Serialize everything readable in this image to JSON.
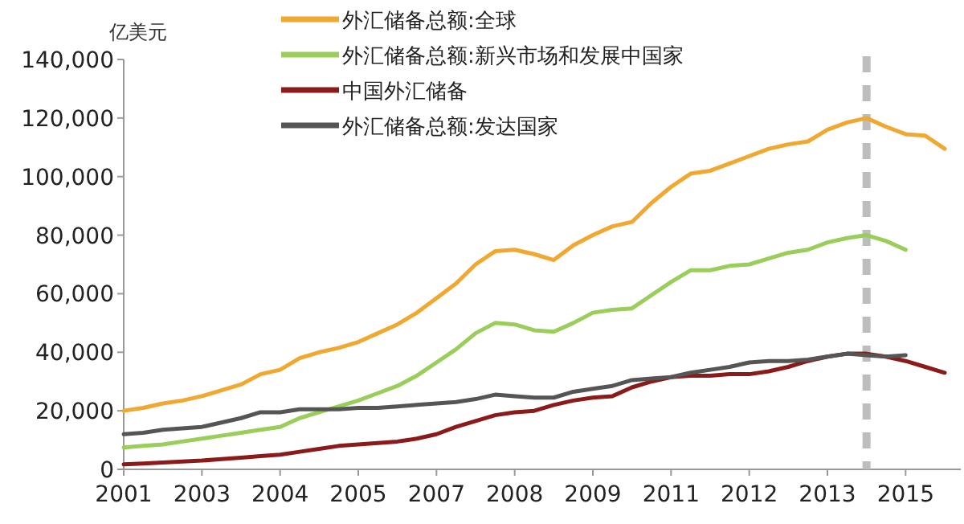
{
  "chart_data": {
    "type": "line",
    "ylabel": "亿美元",
    "legend": "top",
    "marker": "none",
    "line_style": "solid",
    "categories": [
      "2001",
      null,
      null,
      null,
      "2003",
      null,
      null,
      null,
      "2004",
      null,
      null,
      null,
      "2005",
      null,
      null,
      null,
      "2007",
      null,
      null,
      null,
      "2008",
      null,
      null,
      null,
      "2009",
      null,
      null,
      null,
      "2011",
      null,
      null,
      null,
      "2012",
      null,
      null,
      null,
      "2013",
      null,
      null,
      null,
      "2015",
      null,
      null
    ],
    "ylim": [
      0,
      140000
    ],
    "yticks": [
      {
        "value": 0,
        "label": "0"
      },
      {
        "value": 20000,
        "label": "20,000"
      },
      {
        "value": 40000,
        "label": "40,000"
      },
      {
        "value": 60000,
        "label": "60,000"
      },
      {
        "value": 80000,
        "label": "80,000"
      },
      {
        "value": 100000,
        "label": "100,000"
      },
      {
        "value": 120000,
        "label": "120,000"
      },
      {
        "value": 140000,
        "label": "140,000"
      }
    ],
    "series": [
      {
        "name": "外汇储备总额:全球",
        "color": "#f0a830",
        "values": [
          20000,
          21000,
          22500,
          23500,
          25000,
          27000,
          29000,
          32500,
          34000,
          38000,
          40000,
          41500,
          43500,
          46500,
          49500,
          53500,
          58500,
          63500,
          70000,
          74500,
          75000,
          73500,
          71500,
          76500,
          80000,
          83000,
          84500,
          91000,
          96500,
          101000,
          102000,
          104500,
          107000,
          109500,
          111000,
          112000,
          116000,
          118500,
          120000,
          117000,
          114500,
          114000,
          109500
        ]
      },
      {
        "name": "外汇储备总额:新兴市场和发展中国家",
        "color": "#9acd5a",
        "values": [
          7500,
          8000,
          8500,
          9500,
          10500,
          11500,
          12500,
          13500,
          14500,
          17500,
          19500,
          21500,
          23500,
          26000,
          28500,
          32000,
          36500,
          41000,
          46500,
          50000,
          49500,
          47500,
          47000,
          50000,
          53500,
          54500,
          55000,
          59500,
          64000,
          68000,
          68000,
          69500,
          70000,
          72000,
          74000,
          75000,
          77500,
          79000,
          80000,
          78000,
          75000,
          null,
          null
        ]
      },
      {
        "name": "中国外汇储备",
        "color": "#8b1a1a",
        "values": [
          1700,
          2000,
          2300,
          2700,
          3000,
          3500,
          4000,
          4500,
          5000,
          6000,
          7000,
          8000,
          8500,
          9000,
          9500,
          10500,
          12000,
          14500,
          16500,
          18500,
          19500,
          20000,
          22000,
          23500,
          24500,
          25000,
          28000,
          30000,
          31500,
          32000,
          32000,
          32500,
          32500,
          33500,
          35000,
          37000,
          38500,
          39500,
          39500,
          38500,
          37000,
          35000,
          33000
        ]
      },
      {
        "name": "外汇储备总额:发达国家",
        "color": "#555555",
        "values": [
          12000,
          12500,
          13500,
          14000,
          14500,
          16000,
          17500,
          19500,
          19500,
          20500,
          20500,
          20500,
          21000,
          21000,
          21500,
          22000,
          22500,
          23000,
          24000,
          25500,
          25000,
          24500,
          24500,
          26500,
          27500,
          28500,
          30500,
          31000,
          31500,
          33000,
          34000,
          35000,
          36500,
          37000,
          37000,
          37500,
          38500,
          39500,
          39000,
          38500,
          39000,
          null,
          null
        ]
      }
    ]
  }
}
